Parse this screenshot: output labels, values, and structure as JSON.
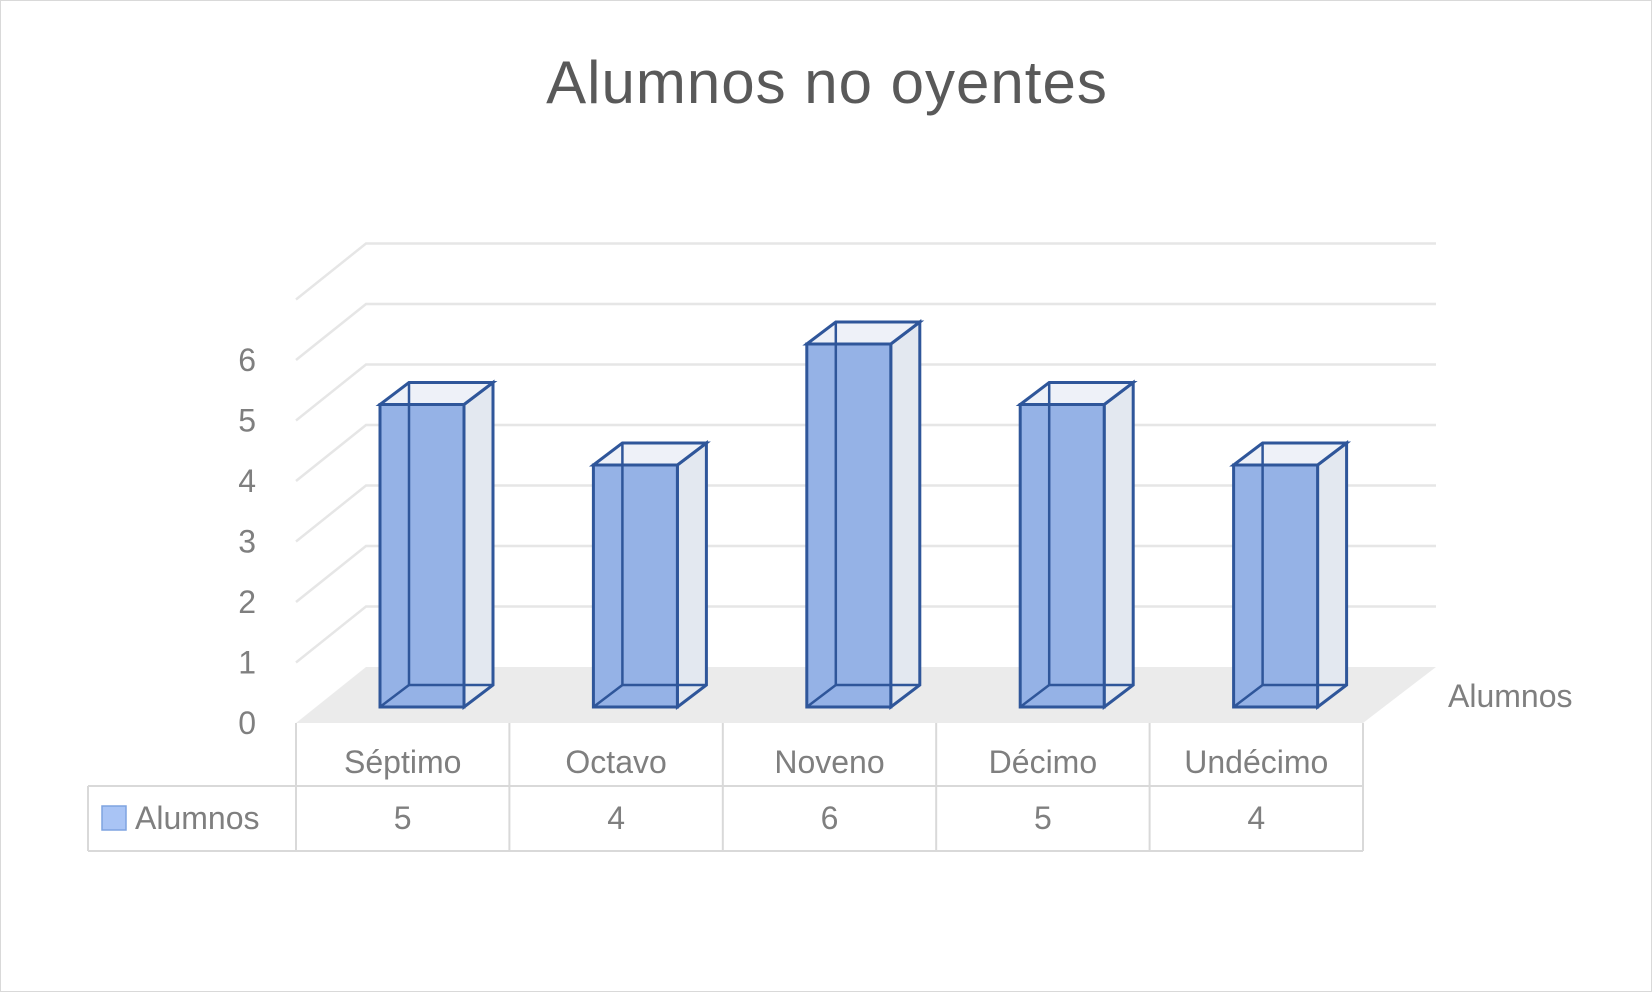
{
  "chart_data": {
    "type": "bar",
    "title": "Alumnos no oyentes",
    "categories": [
      "Séptimo",
      "Octavo",
      "Noveno",
      "Décimo",
      "Undécimo"
    ],
    "series": [
      {
        "name": "Alumnos",
        "values": [
          5,
          4,
          6,
          5,
          4
        ]
      }
    ],
    "depth_axis_label": "Alumnos",
    "ylim": [
      0,
      6
    ],
    "yticks": [
      "0",
      "1",
      "2",
      "3",
      "4",
      "5",
      "6"
    ],
    "grid": true,
    "legend": "data-table",
    "colors": {
      "bar_fill": "#95b2e6",
      "bar_edge": "#2f569a",
      "legend_swatch": "#a9c4f5"
    }
  }
}
